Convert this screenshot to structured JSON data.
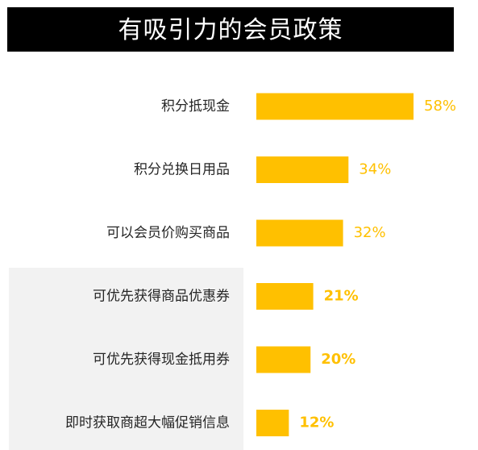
{
  "title": "有吸引力的会员政策",
  "colors": {
    "bar": "#FFC000",
    "title_background": "#000000",
    "title_text": "#FFFFFF",
    "highlight_panel": "#F2F2F2"
  },
  "chart_data": {
    "type": "bar",
    "orientation": "horizontal",
    "title": "有吸引力的会员政策",
    "categories": [
      "积分抵现金",
      "积分兑换日用品",
      "可以会员价购买商品",
      "可优先获得商品优惠券",
      "可优先获得现金抵用券",
      "即时获取商超大幅促销信息"
    ],
    "values": [
      58,
      34,
      32,
      21,
      20,
      12
    ],
    "value_labels": [
      "58%",
      "34%",
      "32%",
      "21%",
      "20%",
      "12%"
    ],
    "bold_labels": [
      false,
      false,
      false,
      true,
      true,
      true
    ],
    "unit": "%",
    "xlim": [
      0,
      100
    ],
    "grid": false,
    "legend": "none"
  }
}
